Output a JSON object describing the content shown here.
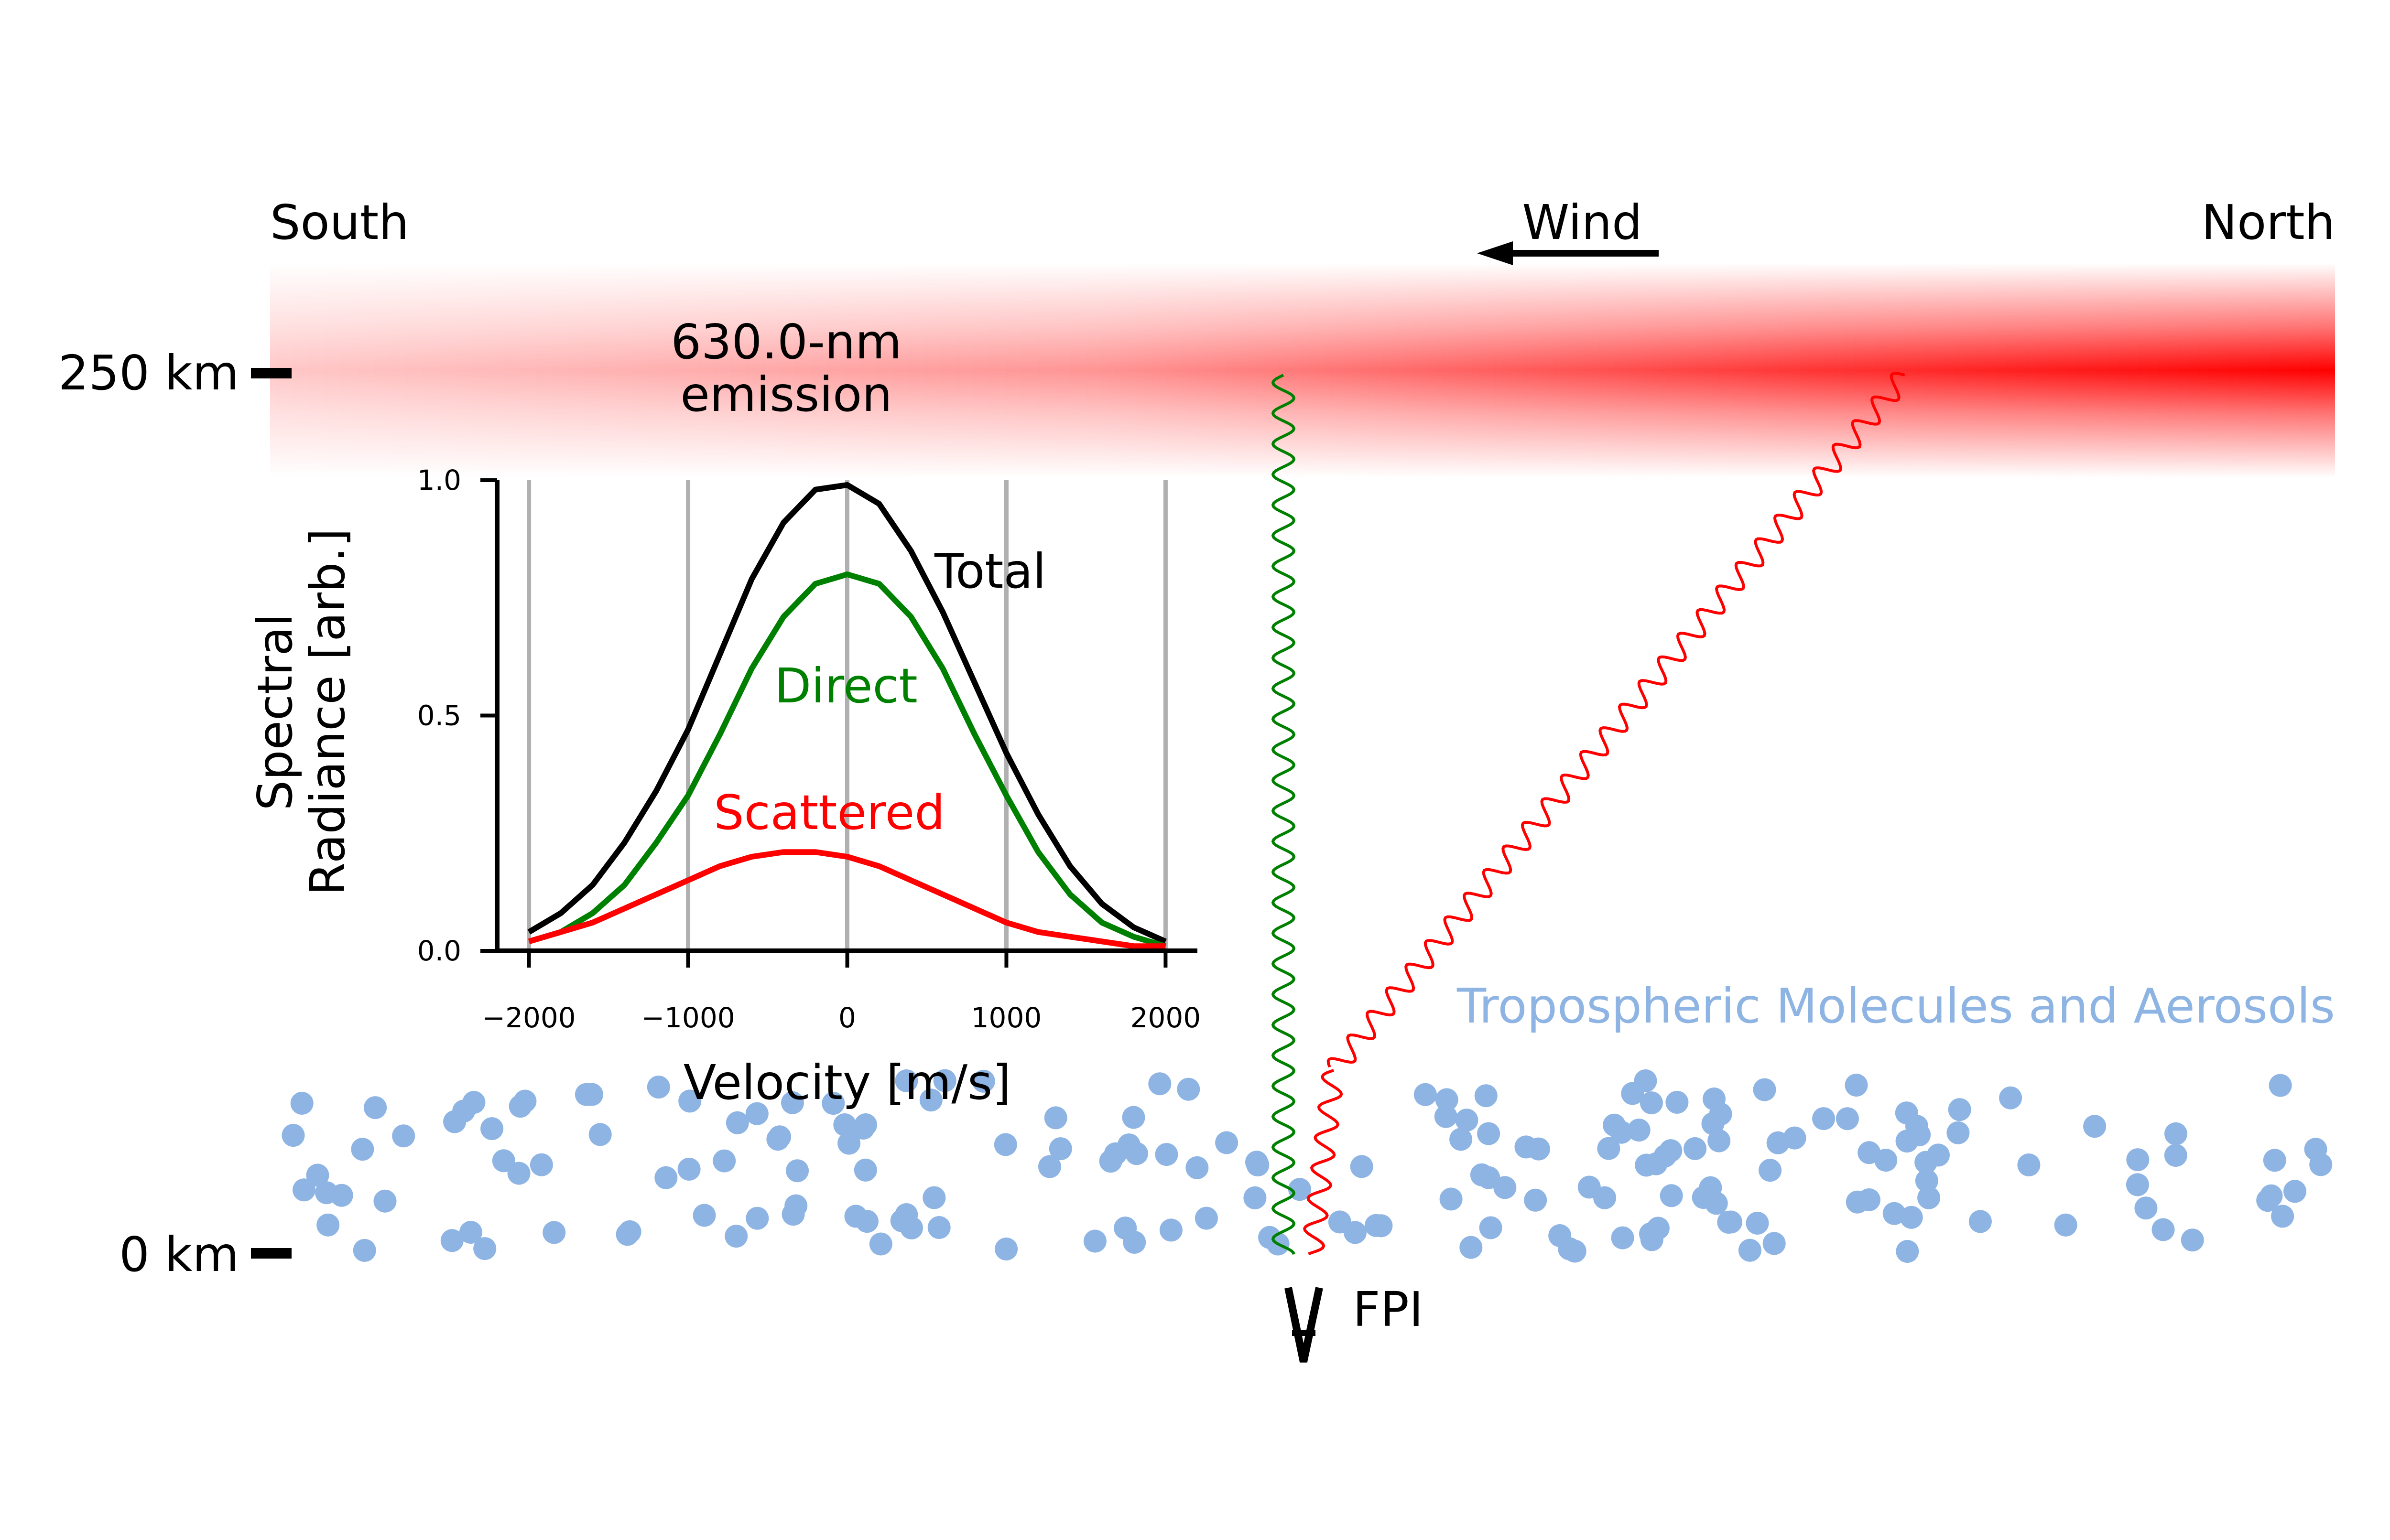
{
  "labels": {
    "south": "South",
    "north": "North",
    "wind": "Wind",
    "alt_250": "250 km",
    "alt_0": "0 km",
    "emission_line1": "630.0-nm",
    "emission_line2": "emission",
    "troposphere": "Tropospheric Molecules and Aerosols",
    "instrument": "FPI"
  },
  "colors": {
    "emission": "#ff0000",
    "direct": "#008000",
    "scattered": "#ff0000",
    "total": "#000000",
    "particles": "#8eb4e3",
    "grid": "#b0b0b0"
  },
  "chart_data": {
    "type": "line",
    "xlabel": "Velocity [m/s]",
    "ylabel_line1": "Spectral",
    "ylabel_line2": "Radiance [arb.]",
    "xlim": [
      -2200,
      2200
    ],
    "ylim": [
      0,
      1.0
    ],
    "xticks": [
      -2000,
      -1000,
      0,
      1000,
      2000
    ],
    "xtick_labels": [
      "−2000",
      "−1000",
      "0",
      "1000",
      "2000"
    ],
    "yticks": [
      0.0,
      0.5,
      1.0
    ],
    "ytick_labels": [
      "0.0",
      "0.5",
      "1.0"
    ],
    "grid": "vertical",
    "series": [
      {
        "name": "Total",
        "color": "#000000",
        "x": [
          -2000,
          -1800,
          -1600,
          -1400,
          -1200,
          -1000,
          -800,
          -600,
          -400,
          -200,
          0,
          200,
          400,
          600,
          800,
          1000,
          1200,
          1400,
          1600,
          1800,
          2000
        ],
        "y": [
          0.04,
          0.08,
          0.14,
          0.23,
          0.34,
          0.47,
          0.63,
          0.79,
          0.91,
          0.98,
          0.99,
          0.95,
          0.85,
          0.72,
          0.57,
          0.42,
          0.29,
          0.18,
          0.1,
          0.05,
          0.02
        ]
      },
      {
        "name": "Direct",
        "color": "#008000",
        "x": [
          -2000,
          -1800,
          -1600,
          -1400,
          -1200,
          -1000,
          -800,
          -600,
          -400,
          -200,
          0,
          200,
          400,
          600,
          800,
          1000,
          1200,
          1400,
          1600,
          1800,
          2000
        ],
        "y": [
          0.02,
          0.04,
          0.08,
          0.14,
          0.23,
          0.33,
          0.46,
          0.6,
          0.71,
          0.78,
          0.8,
          0.78,
          0.71,
          0.6,
          0.46,
          0.33,
          0.21,
          0.12,
          0.06,
          0.03,
          0.01
        ]
      },
      {
        "name": "Scattered",
        "color": "#ff0000",
        "x": [
          -2000,
          -1800,
          -1600,
          -1400,
          -1200,
          -1000,
          -800,
          -600,
          -400,
          -200,
          0,
          200,
          400,
          600,
          800,
          1000,
          1200,
          1400,
          1600,
          1800,
          2000
        ],
        "y": [
          0.02,
          0.04,
          0.06,
          0.09,
          0.12,
          0.15,
          0.18,
          0.2,
          0.21,
          0.21,
          0.2,
          0.18,
          0.15,
          0.12,
          0.09,
          0.06,
          0.04,
          0.03,
          0.02,
          0.01,
          0.01
        ]
      }
    ]
  }
}
